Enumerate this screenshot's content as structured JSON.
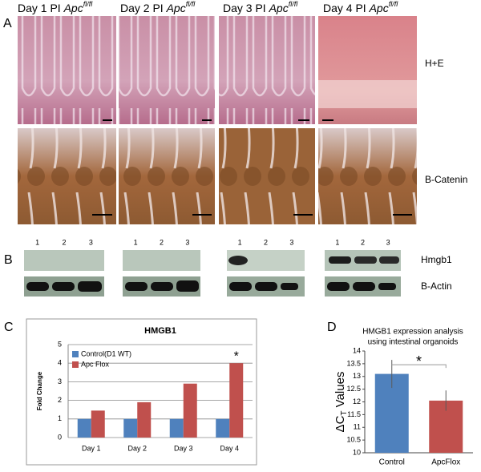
{
  "panel_labels": [
    "A",
    "B",
    "C",
    "D"
  ],
  "panel_a": {
    "columns": [
      {
        "prefix": "Day 1 PI ",
        "gene": "Apc",
        "superscript": "fl/fl"
      },
      {
        "prefix": "Day 2 PI ",
        "gene": "Apc",
        "superscript": "fl/fl"
      },
      {
        "prefix": "Day 3 PI ",
        "gene": "Apc",
        "superscript": "fl/fl"
      },
      {
        "prefix": "Day 4 PI ",
        "gene": "Apc",
        "superscript": "fl/fl"
      }
    ],
    "rows": [
      "H+E",
      "B-Catenin"
    ]
  },
  "panel_b": {
    "groups": [
      {
        "lanes": [
          "1",
          "2",
          "3"
        ]
      },
      {
        "lanes": [
          "1",
          "2",
          "3"
        ]
      },
      {
        "lanes": [
          "1",
          "2",
          "3"
        ]
      },
      {
        "lanes": [
          "1",
          "2",
          "3"
        ]
      }
    ],
    "rows": [
      "Hmgb1",
      "B-Actin"
    ]
  },
  "chart_data": [
    {
      "type": "bar",
      "title": "HMGB1",
      "y_label": "Fold Change",
      "categories": [
        "Day 1",
        "Day 2",
        "Day 3",
        "Day 4"
      ],
      "series": [
        {
          "name": "Control(D1 WT)",
          "color": "#4f81bd",
          "values": [
            1,
            1,
            1,
            1
          ]
        },
        {
          "name": "Apc Flox",
          "color": "#c0504d",
          "values": [
            1.45,
            1.9,
            2.9,
            4.0
          ]
        }
      ],
      "ylim": [
        0,
        5
      ],
      "yticks": [
        0,
        1,
        2,
        3,
        4,
        5
      ],
      "grid": true,
      "legend": "upper-left",
      "annotation": "*"
    },
    {
      "type": "errorbar",
      "title_lines": [
        "HMGB1 expression analysis",
        "using intestinal organoids"
      ],
      "y_label": {
        "main": "ΔC",
        "sub": "T",
        "rest": " Values"
      },
      "categories": [
        "Control",
        "ApcFlox"
      ],
      "values": [
        13.1,
        12.05
      ],
      "errors": [
        0.55,
        0.4
      ],
      "colors": [
        "#4f81bd",
        "#c0504d"
      ],
      "ylim": [
        10,
        14
      ],
      "yticks": [
        10,
        10.5,
        11,
        11.5,
        12,
        12.5,
        13,
        13.5,
        14
      ],
      "annotation": "*"
    }
  ]
}
